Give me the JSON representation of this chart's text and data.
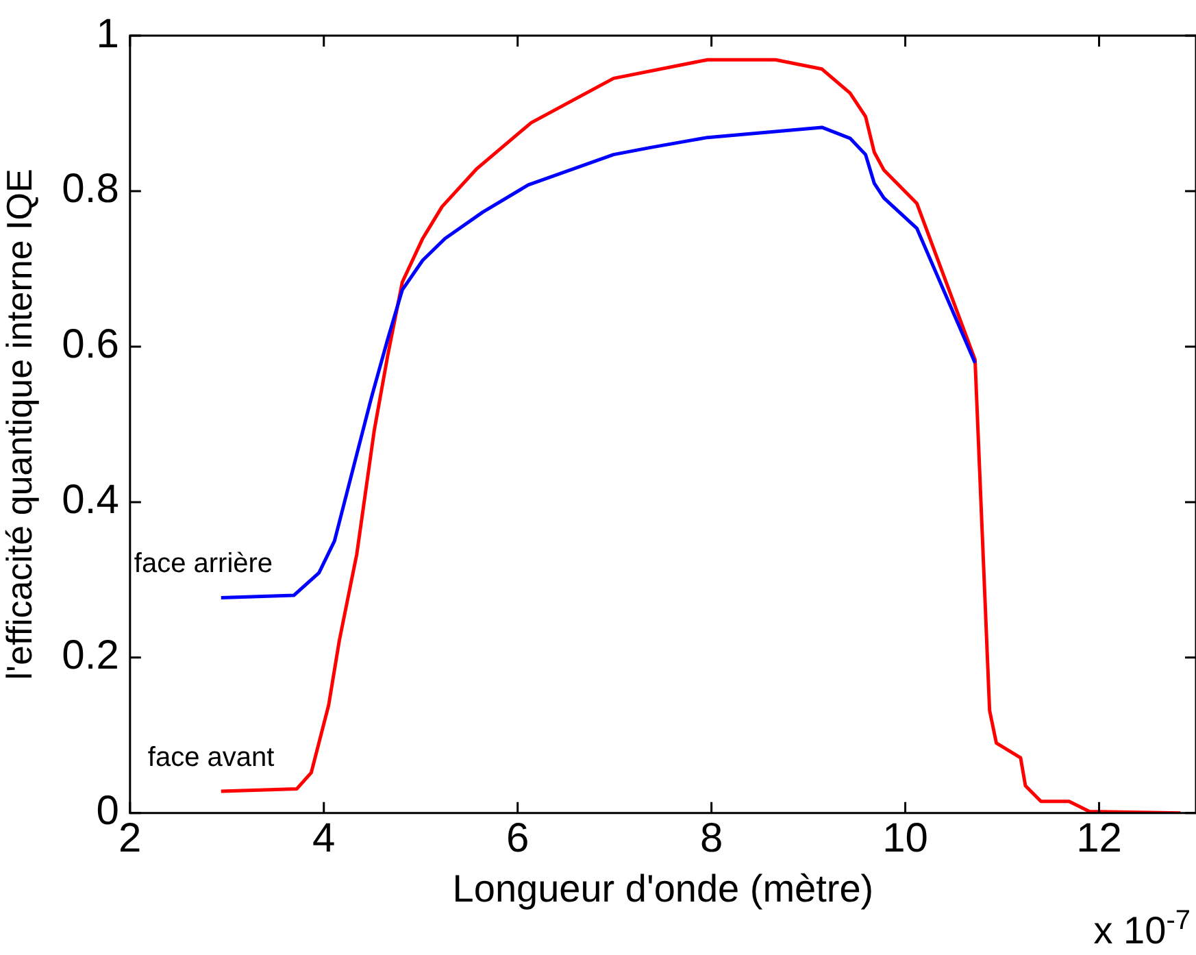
{
  "chart_data": {
    "type": "line",
    "xlabel": "Longueur d'onde (mètre)",
    "ylabel": "l'efficacité quantique interne IQE",
    "annotations": [
      "x 10$^{-7}$"
    ],
    "xlim": [
      2,
      13
    ],
    "xticks": [
      2,
      4,
      6,
      8,
      10,
      12
    ],
    "ylim": [
      0,
      1
    ],
    "yticks": [
      0,
      0.2,
      0.4,
      0.6,
      0.8,
      1
    ],
    "grid": false,
    "legend": false,
    "marker": "none",
    "line_style": "solid",
    "series": [
      {
        "name": "face arrière",
        "color": "#0000ff",
        "x": [
          2.94,
          3.69,
          3.95,
          4.11,
          4.31,
          4.49,
          4.66,
          4.81,
          5.02,
          5.25,
          5.64,
          6.11,
          6.99,
          7.37,
          7.96,
          9.14,
          9.43,
          9.59,
          9.68,
          9.78,
          10.12,
          10.72
        ],
        "values": [
          0.277,
          0.28,
          0.309,
          0.35,
          0.447,
          0.534,
          0.61,
          0.673,
          0.711,
          0.739,
          0.773,
          0.808,
          0.847,
          0.856,
          0.869,
          0.882,
          0.868,
          0.847,
          0.81,
          0.791,
          0.752,
          0.579
        ]
      },
      {
        "name": "face avant",
        "color": "#ff0000",
        "x": [
          2.94,
          3.72,
          3.87,
          4.05,
          4.16,
          4.34,
          4.52,
          4.66,
          4.81,
          5.02,
          5.22,
          5.58,
          6.14,
          6.99,
          7.96,
          8.66,
          9.14,
          9.43,
          9.59,
          9.68,
          9.78,
          10.12,
          10.72,
          10.87,
          10.94,
          11.19,
          11.24,
          11.4,
          11.69,
          11.9,
          12.84
        ],
        "values": [
          0.028,
          0.031,
          0.052,
          0.139,
          0.222,
          0.333,
          0.492,
          0.589,
          0.683,
          0.739,
          0.78,
          0.829,
          0.888,
          0.945,
          0.969,
          0.969,
          0.957,
          0.926,
          0.896,
          0.85,
          0.827,
          0.784,
          0.583,
          0.132,
          0.09,
          0.071,
          0.035,
          0.015,
          0.015,
          0.002,
          0
        ]
      }
    ]
  }
}
